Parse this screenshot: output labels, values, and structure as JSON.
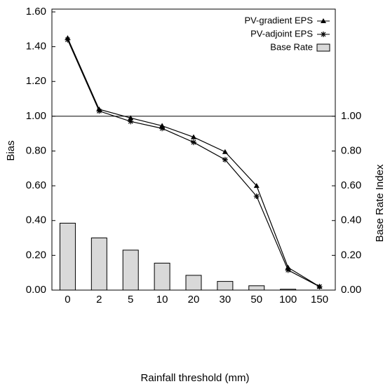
{
  "chart_data": {
    "type": "line-bar",
    "xlabel": "Rainfall threshold (mm)",
    "ylabel": "Bias",
    "y2label": "Base Rate Index",
    "categories": [
      "0",
      "2",
      "5",
      "10",
      "20",
      "30",
      "50",
      "100",
      "150"
    ],
    "series": [
      {
        "name": "PV-gradient EPS",
        "color": "#000000",
        "marker": "triangle",
        "kind": "line",
        "values": [
          1.45,
          1.04,
          0.99,
          0.945,
          0.88,
          0.795,
          0.6,
          0.13,
          0.02
        ]
      },
      {
        "name": "PV-adjoint EPS",
        "color": "#000000",
        "marker": "star",
        "kind": "line",
        "values": [
          1.44,
          1.03,
          0.97,
          0.93,
          0.85,
          0.75,
          0.54,
          0.115,
          0.02
        ]
      },
      {
        "name": "Base Rate",
        "color": "#d9d9d9",
        "kind": "bar",
        "axis": "y2",
        "values": [
          0.385,
          0.3,
          0.23,
          0.155,
          0.085,
          0.05,
          0.025,
          0.005,
          0
        ]
      }
    ],
    "ylim": [
      0,
      1.6
    ],
    "yticks": [
      {
        "value": 0,
        "label": "0.00"
      },
      {
        "value": 0.2,
        "label": "0.20"
      },
      {
        "value": 0.4,
        "label": "0.40"
      },
      {
        "value": 0.6,
        "label": "0.60"
      },
      {
        "value": 0.8,
        "label": "0.80"
      },
      {
        "value": 1,
        "label": "1.00"
      },
      {
        "value": 1.2,
        "label": "1.20"
      },
      {
        "value": 1.4,
        "label": "1.40"
      },
      {
        "value": 1.6,
        "label": "1.60"
      }
    ],
    "y2lim": [
      0,
      1.6
    ],
    "y2ticks": [
      {
        "value": 0,
        "label": "0.00"
      },
      {
        "value": 0.2,
        "label": "0.20"
      },
      {
        "value": 0.4,
        "label": "0.40"
      },
      {
        "value": 0.6,
        "label": "0.60"
      },
      {
        "value": 0.8,
        "label": "0.80"
      },
      {
        "value": 1,
        "label": "1.00"
      }
    ],
    "reference_line": 1,
    "legend": "top-right"
  }
}
